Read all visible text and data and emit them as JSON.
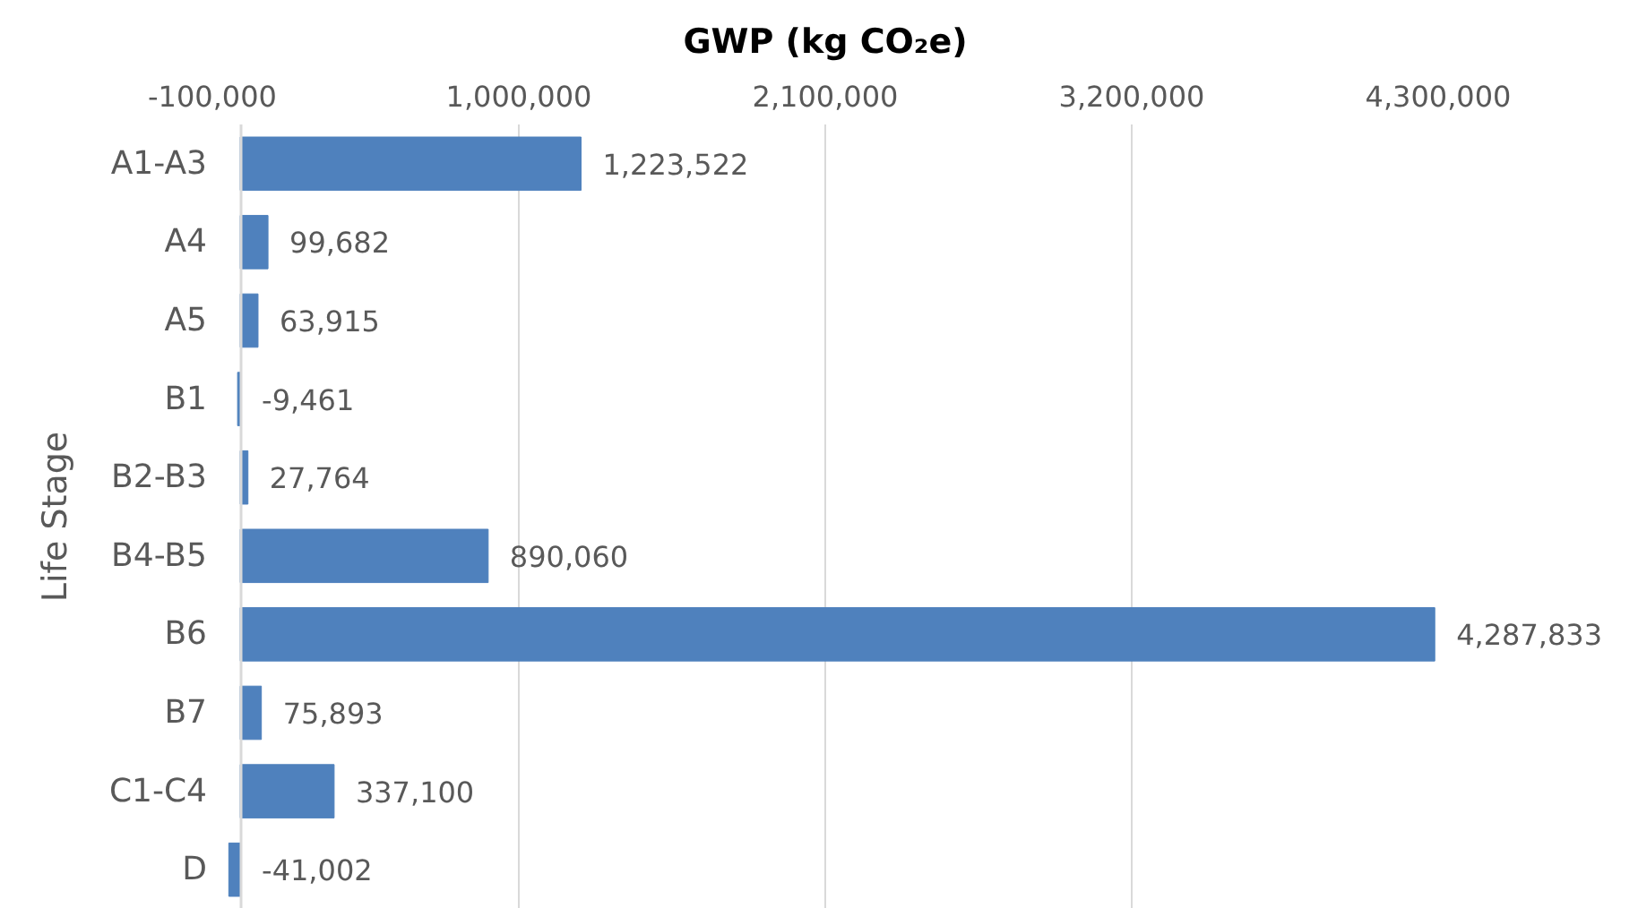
{
  "chart_data": {
    "type": "bar",
    "orientation": "horizontal",
    "xlabel": "GWP (kg CO₂e)",
    "ylabel": "Life Stage",
    "categories": [
      "A1-A3",
      "A4",
      "A5",
      "B1",
      "B2-B3",
      "B4-B5",
      "B6",
      "B7",
      "C1-C4",
      "D"
    ],
    "values": [
      1223522,
      99682,
      63915,
      -9461,
      27764,
      890060,
      4287833,
      75893,
      337100,
      -41002
    ],
    "value_labels": [
      "1,223,522",
      "99,682",
      "63,915",
      "-9,461",
      "27,764",
      "890,060",
      "4,287,833",
      "75,893",
      "337,100",
      "-41,002"
    ],
    "color": "#4f81bd",
    "xlim": [
      -100000,
      4300000
    ],
    "xticks": [
      {
        "value": -100000,
        "label": "-100,000"
      },
      {
        "value": 1000000,
        "label": "1,000,000"
      },
      {
        "value": 2100000,
        "label": "2,100,000"
      },
      {
        "value": 3200000,
        "label": "3,200,000"
      },
      {
        "value": 4300000,
        "label": "4,300,000"
      }
    ],
    "grid": "x"
  }
}
